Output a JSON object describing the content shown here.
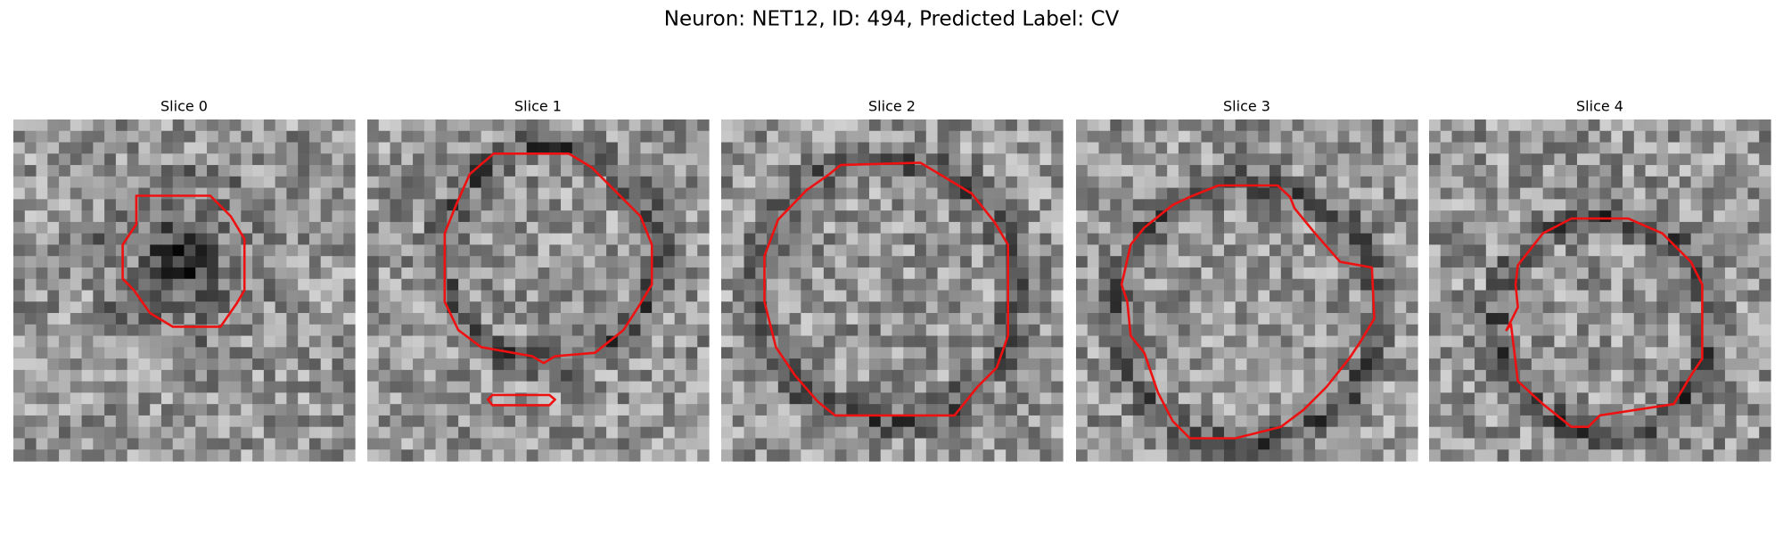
{
  "title": "Neuron: NET12, ID: 494, Predicted Label: CV",
  "panels": [
    {
      "title": "Slice 0"
    },
    {
      "title": "Slice 1"
    },
    {
      "title": "Slice 2"
    },
    {
      "title": "Slice 3"
    },
    {
      "title": "Slice 4"
    }
  ]
}
